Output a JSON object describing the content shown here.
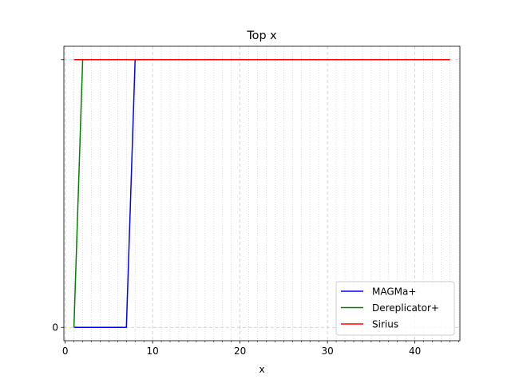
{
  "chart_data": {
    "type": "line",
    "title": "Top x",
    "xlabel": "x",
    "ylabel": "",
    "xlim": [
      -0.15,
      45.15
    ],
    "ylim": [
      -0.05,
      1.05
    ],
    "x_ticks": [
      0,
      10,
      20,
      30,
      40
    ],
    "x_tick_labels": [
      "0",
      "10",
      "20",
      "30",
      "40"
    ],
    "y_ticks": [
      0,
      1
    ],
    "y_tick_labels": [
      "0",
      ""
    ],
    "grid": true,
    "legend_position": "lower-right",
    "series": [
      {
        "name": "MAGMa+",
        "color": "#0000ff",
        "x": [
          1,
          2,
          3,
          4,
          5,
          6,
          7,
          8,
          9,
          10,
          11,
          12,
          13,
          14,
          15,
          16,
          17,
          18,
          19,
          20,
          21,
          22,
          23,
          24,
          25,
          26,
          27,
          28,
          29,
          30,
          31,
          32,
          33,
          34,
          35,
          36,
          37,
          38,
          39,
          40,
          41,
          42,
          43,
          44
        ],
        "y": [
          0,
          0,
          0,
          0,
          0,
          0,
          0,
          1,
          1,
          1,
          1,
          1,
          1,
          1,
          1,
          1,
          1,
          1,
          1,
          1,
          1,
          1,
          1,
          1,
          1,
          1,
          1,
          1,
          1,
          1,
          1,
          1,
          1,
          1,
          1,
          1,
          1,
          1,
          1,
          1,
          1,
          1,
          1,
          1
        ]
      },
      {
        "name": "Dereplicator+",
        "color": "#008000",
        "x": [
          1,
          2,
          3,
          4,
          5,
          6,
          7,
          8,
          9,
          10,
          11,
          12,
          13,
          14,
          15,
          16,
          17,
          18,
          19,
          20,
          21,
          22,
          23,
          24,
          25,
          26,
          27,
          28,
          29,
          30,
          31,
          32,
          33,
          34,
          35,
          36,
          37,
          38,
          39,
          40,
          41,
          42,
          43,
          44
        ],
        "y": [
          0,
          1,
          1,
          1,
          1,
          1,
          1,
          1,
          1,
          1,
          1,
          1,
          1,
          1,
          1,
          1,
          1,
          1,
          1,
          1,
          1,
          1,
          1,
          1,
          1,
          1,
          1,
          1,
          1,
          1,
          1,
          1,
          1,
          1,
          1,
          1,
          1,
          1,
          1,
          1,
          1,
          1,
          1,
          1
        ]
      },
      {
        "name": "Sirius",
        "color": "#ff0000",
        "x": [
          1,
          2,
          3,
          4,
          5,
          6,
          7,
          8,
          9,
          10,
          11,
          12,
          13,
          14,
          15,
          16,
          17,
          18,
          19,
          20,
          21,
          22,
          23,
          24,
          25,
          26,
          27,
          28,
          29,
          30,
          31,
          32,
          33,
          34,
          35,
          36,
          37,
          38,
          39,
          40,
          41,
          42,
          43,
          44
        ],
        "y": [
          1,
          1,
          1,
          1,
          1,
          1,
          1,
          1,
          1,
          1,
          1,
          1,
          1,
          1,
          1,
          1,
          1,
          1,
          1,
          1,
          1,
          1,
          1,
          1,
          1,
          1,
          1,
          1,
          1,
          1,
          1,
          1,
          1,
          1,
          1,
          1,
          1,
          1,
          1,
          1,
          1,
          1,
          1,
          1
        ]
      }
    ]
  }
}
